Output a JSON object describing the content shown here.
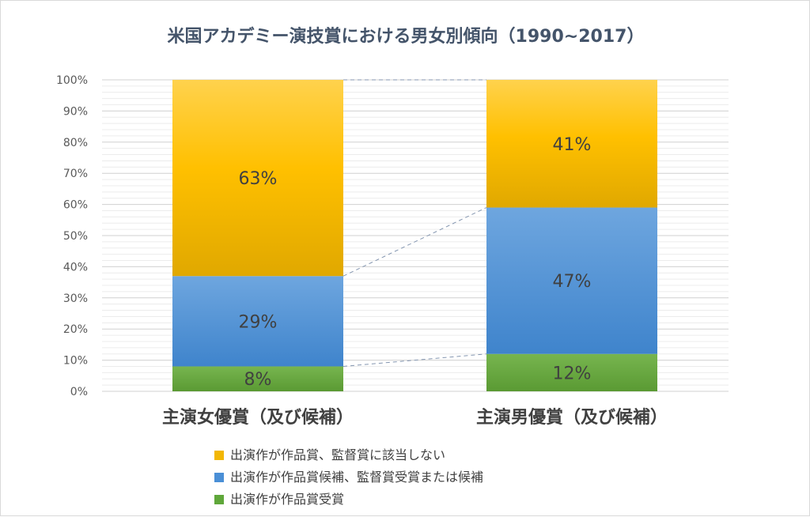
{
  "chart_data": {
    "type": "bar",
    "stacked": true,
    "percent": true,
    "title": "米国アカデミー演技賞における男女別傾向（1990~2017）",
    "categories": [
      "主演女優賞（及び候補）",
      "主演男優賞（及び候補）"
    ],
    "series": [
      {
        "name": "出演作が作品賞受賞",
        "values": [
          8,
          12
        ],
        "labels": [
          "8%",
          "12%"
        ],
        "color": "#5fa73a"
      },
      {
        "name": "出演作が作品賞候補、監督賞受賞または候補",
        "values": [
          29,
          47
        ],
        "labels": [
          "29%",
          "47%"
        ],
        "color": "#4a8fd6"
      },
      {
        "name": "出演作が作品賞、監督賞に該当しない",
        "values": [
          63,
          41
        ],
        "labels": [
          "63%",
          "41%"
        ],
        "color": "#f2b705"
      }
    ],
    "ylim": [
      0,
      100
    ],
    "yticks": [
      "0%",
      "10%",
      "20%",
      "30%",
      "40%",
      "50%",
      "60%",
      "70%",
      "80%",
      "90%",
      "100%"
    ],
    "grid": true,
    "series_lines": true,
    "legend_position": "bottom",
    "legend_order": [
      2,
      1,
      0
    ]
  }
}
